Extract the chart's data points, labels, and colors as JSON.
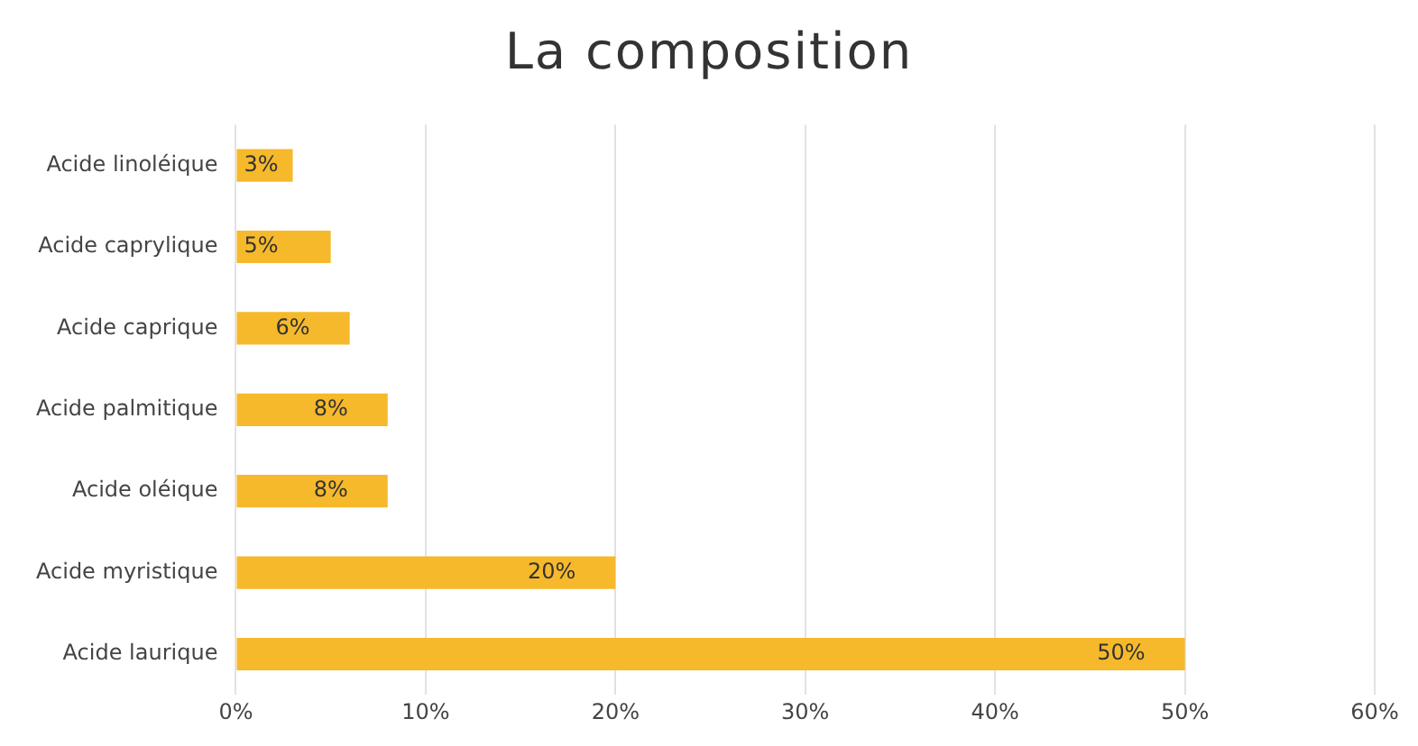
{
  "chart_data": {
    "type": "bar",
    "orientation": "horizontal",
    "title": "La composition",
    "categories": [
      "Acide linoléique",
      "Acide caprylique",
      "Acide caprique",
      "Acide palmitique",
      "Acide oléique",
      "Acide myristique",
      "Acide laurique"
    ],
    "values": [
      3,
      5,
      6,
      8,
      8,
      20,
      50
    ],
    "value_labels": [
      "3%",
      "5%",
      "6%",
      "8%",
      "8%",
      "20%",
      "50%"
    ],
    "color": "#f6b92b",
    "xlim": [
      0,
      60
    ],
    "xticks": [
      {
        "value": 0,
        "label": "0%"
      },
      {
        "value": 10,
        "label": "10%"
      },
      {
        "value": 20,
        "label": "20%"
      },
      {
        "value": 30,
        "label": "30%"
      },
      {
        "value": 40,
        "label": "40%"
      },
      {
        "value": 50,
        "label": "50%"
      },
      {
        "value": 60,
        "label": "60%"
      }
    ],
    "grid": "x"
  }
}
